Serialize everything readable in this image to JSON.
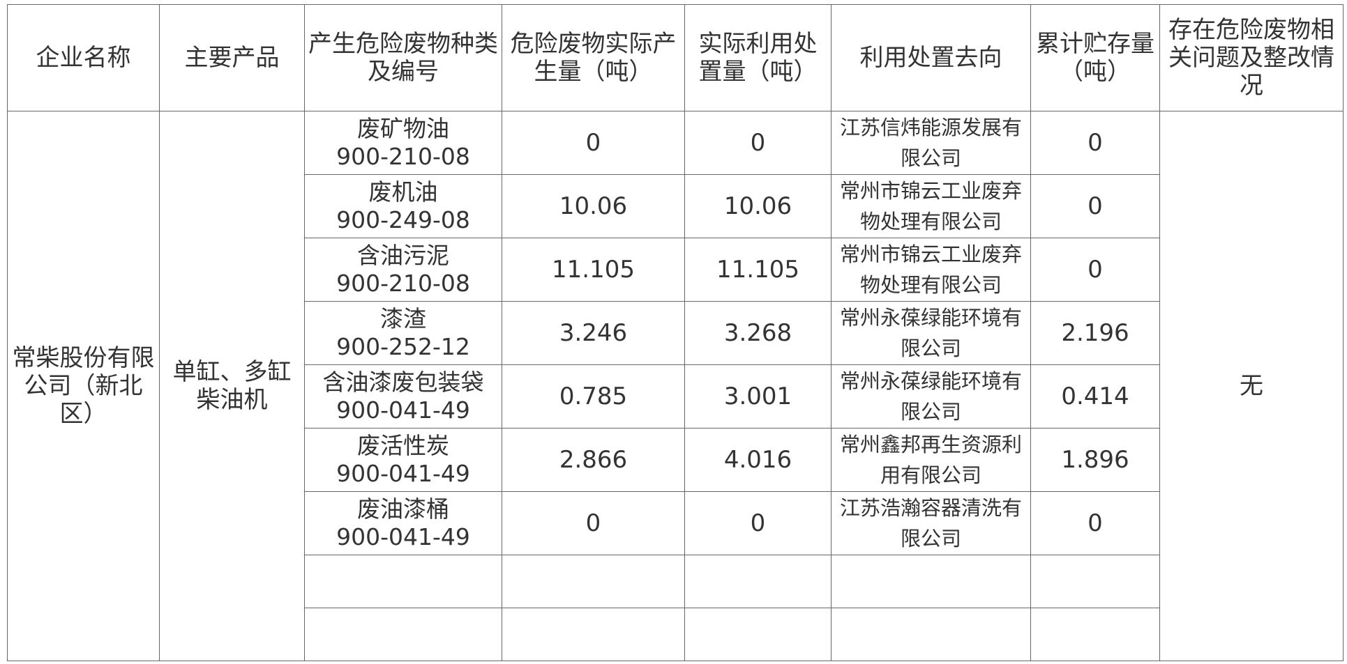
{
  "table": {
    "columns": [
      "企业名称",
      "主要产品",
      "产生危险废物种类及编号",
      "危险废物实际产生量（吨）",
      "实际利用处置量（吨）",
      "利用处置去向",
      "累计贮存量（吨）",
      "存在危险废物相关问题及整改情况"
    ],
    "company": "常柴股份有限公司（新北区）",
    "product": "单缸、多缸柴油机",
    "problems": "无",
    "rows": [
      {
        "waste": "废矿物油",
        "code": "900-210-08",
        "generated": "0",
        "disposed": "0",
        "destination": "江苏信炜能源发展有限公司",
        "stored": "0"
      },
      {
        "waste": "废机油",
        "code": "900-249-08",
        "generated": "10.06",
        "disposed": "10.06",
        "destination": "常州市锦云工业废弃物处理有限公司",
        "stored": "0"
      },
      {
        "waste": "含油污泥",
        "code": "900-210-08",
        "generated": "11.105",
        "disposed": "11.105",
        "destination": "常州市锦云工业废弃物处理有限公司",
        "stored": "0"
      },
      {
        "waste": "漆渣",
        "code": "900-252-12",
        "generated": "3.246",
        "disposed": "3.268",
        "destination": "常州永葆绿能环境有限公司",
        "stored": "2.196"
      },
      {
        "waste": "含油漆废包装袋",
        "code": "900-041-49",
        "generated": "0.785",
        "disposed": "3.001",
        "destination": "常州永葆绿能环境有限公司",
        "stored": "0.414"
      },
      {
        "waste": "废活性炭",
        "code": "900-041-49",
        "generated": "2.866",
        "disposed": "4.016",
        "destination": "常州鑫邦再生资源利用有限公司",
        "stored": "1.896"
      },
      {
        "waste": "废油漆桶",
        "code": "900-041-49",
        "generated": "0",
        "disposed": "0",
        "destination": "江苏浩瀚容器清洗有限公司",
        "stored": "0"
      }
    ]
  }
}
